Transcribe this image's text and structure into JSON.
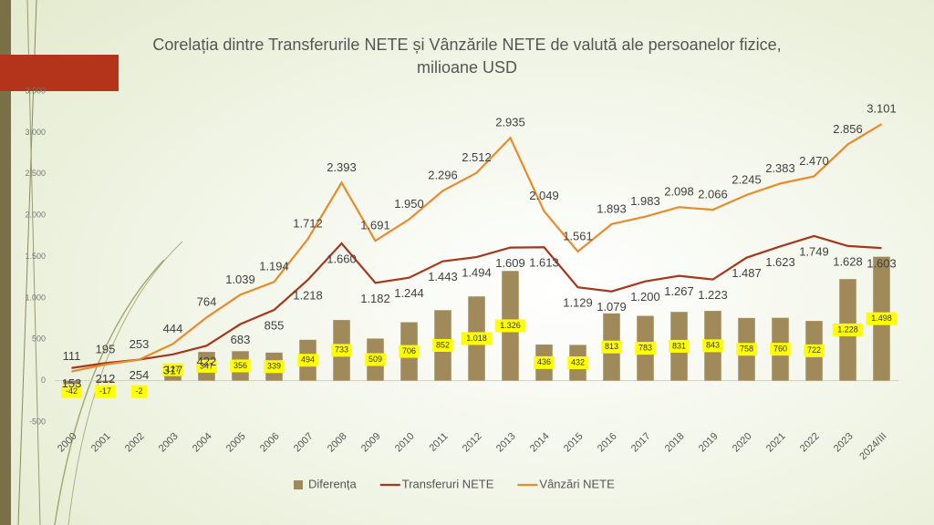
{
  "chart_data": {
    "type": "bar-line",
    "title": "Corelația dintre Transferurile NETE și Vânzările NETE de valută ale persoanelor fizice,",
    "subtitle": "milioane USD",
    "categories": [
      "2000",
      "2001",
      "2002",
      "2003",
      "2004",
      "2005",
      "2006",
      "2007",
      "2008",
      "2009",
      "2010",
      "2011",
      "2012",
      "2013",
      "2014",
      "2015",
      "2016",
      "2017",
      "2018",
      "2019",
      "2020",
      "2021",
      "2022",
      "2023",
      "2024/III"
    ],
    "ylim": [
      -500,
      3500
    ],
    "yticks": [
      -500,
      0,
      500,
      {
        "value": 1000,
        "label": "1.000"
      },
      {
        "value": 1500,
        "label": "1.500"
      },
      {
        "value": 2000,
        "label": "2.000"
      },
      {
        "value": 2500,
        "label": "2.500"
      },
      {
        "value": 3000,
        "label": "3.000"
      },
      {
        "value": 3500,
        "label": "3.500"
      }
    ],
    "series": [
      {
        "name": "Diferența",
        "type": "bar",
        "color": "#a08a5a",
        "values": [
          -42,
          -17,
          -2,
          127,
          347,
          356,
          339,
          494,
          733,
          509,
          706,
          852,
          1018,
          1326,
          436,
          432,
          813,
          783,
          831,
          843,
          758,
          760,
          722,
          1228,
          1498
        ],
        "value_labels": [
          "-42",
          "-17",
          "-2",
          "127",
          "347",
          "356",
          "339",
          "494",
          "733",
          "509",
          "706",
          "852",
          "1.018",
          "1.326",
          "436",
          "432",
          "813",
          "783",
          "831",
          "843",
          "758",
          "760",
          "722",
          "1.228",
          "1.498"
        ]
      },
      {
        "name": "Transferuri NETE",
        "type": "line",
        "color": "#a5381c",
        "values": [
          153,
          212,
          254,
          317,
          422,
          683,
          855,
          1218,
          1660,
          1182,
          1244,
          1443,
          1494,
          1609,
          1613,
          1129,
          1079,
          1200,
          1267,
          1223,
          1487,
          1623,
          1749,
          1628,
          1603
        ],
        "value_labels": [
          "153",
          "212",
          "254",
          "317",
          "422",
          "683",
          "855",
          "1.218",
          "1.660",
          "1.182",
          "1.244",
          "1.443",
          "1.494",
          "1.609",
          "1.613",
          "1.129",
          "1.079",
          "1.200",
          "1.267",
          "1.223",
          "1.487",
          "1.623",
          "1.749",
          "1.628",
          "1.603"
        ]
      },
      {
        "name": "Vânzări NETE",
        "type": "line",
        "color": "#e98a2b",
        "values": [
          111,
          195,
          253,
          444,
          764,
          1039,
          1194,
          1712,
          2393,
          1691,
          1950,
          2296,
          2512,
          2935,
          2049,
          1561,
          1893,
          1983,
          2098,
          2066,
          2245,
          2383,
          2470,
          2856,
          3101
        ],
        "value_labels": [
          "111",
          "195",
          "253",
          "444",
          "764",
          "1.039",
          "1.194",
          "1.712",
          "2.393",
          "1.691",
          "1.950",
          "2.296",
          "2.512",
          "2.935",
          "2.049",
          "1.561",
          "1.893",
          "1.983",
          "2.098",
          "2.066",
          "2.245",
          "2.383",
          "2.470",
          "2.856",
          "3.101"
        ]
      }
    ]
  }
}
